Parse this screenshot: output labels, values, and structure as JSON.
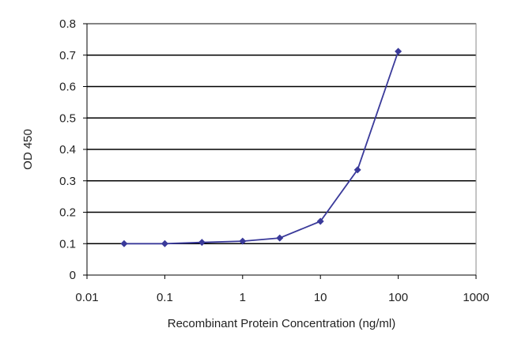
{
  "chart_data": {
    "type": "line",
    "title": "",
    "xlabel": "Recombinant Protein Concentration (ng/ml)",
    "ylabel": "OD 450",
    "x_scale": "log",
    "xlim": [
      0.01,
      1000
    ],
    "ylim": [
      0,
      0.8
    ],
    "x_ticks": [
      "0.01",
      "0.1",
      "1",
      "10",
      "100",
      "1000"
    ],
    "y_ticks": [
      "0",
      "0.1",
      "0.2",
      "0.3",
      "0.4",
      "0.5",
      "0.6",
      "0.7",
      "0.8"
    ],
    "grid": "horizontal",
    "legend": "none",
    "series": [
      {
        "x": [
          0.03,
          0.1,
          0.3,
          1,
          3,
          10,
          30,
          100
        ],
        "y": [
          0.1,
          0.1,
          0.104,
          0.108,
          0.118,
          0.171,
          0.335,
          0.712
        ],
        "color": "#3a3a9a",
        "marker": "diamond"
      }
    ]
  }
}
